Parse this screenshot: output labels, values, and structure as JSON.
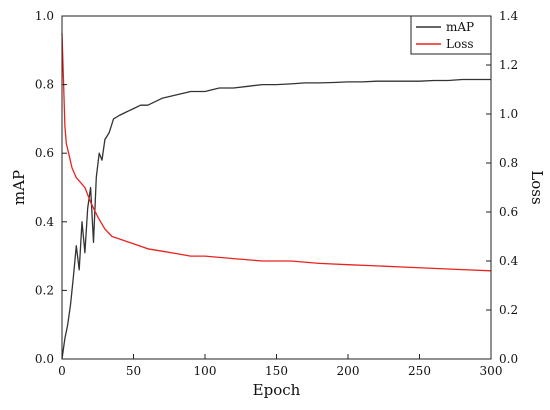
{
  "chart_data": {
    "type": "line",
    "title": "",
    "xlabel": "Epoch",
    "ylabel_left": "mAP",
    "ylabel_right": "Loss",
    "xlim": [
      0,
      300
    ],
    "ylim_left": [
      0.0,
      1.0
    ],
    "ylim_right": [
      0.0,
      1.4
    ],
    "x_ticks": [
      "0",
      "50",
      "100",
      "150",
      "200",
      "250",
      "300"
    ],
    "y_left_ticks": [
      "0.0",
      "0.2",
      "0.4",
      "0.6",
      "0.8",
      "1.0"
    ],
    "y_right_ticks": [
      "0.0",
      "0.2",
      "0.4",
      "0.6",
      "0.8",
      "1.0",
      "1.2",
      "1.4"
    ],
    "grid": false,
    "legend_position": "top-right",
    "series": [
      {
        "name": "mAP",
        "axis": "left",
        "color": "#333333",
        "x": [
          0,
          2,
          4,
          6,
          8,
          10,
          12,
          14,
          16,
          18,
          20,
          22,
          24,
          26,
          28,
          30,
          33,
          36,
          40,
          45,
          50,
          55,
          60,
          70,
          80,
          90,
          100,
          110,
          120,
          130,
          140,
          150,
          160,
          170,
          180,
          190,
          200,
          210,
          220,
          230,
          240,
          250,
          260,
          270,
          280,
          290,
          300
        ],
        "y": [
          0.0,
          0.06,
          0.1,
          0.16,
          0.24,
          0.33,
          0.26,
          0.4,
          0.31,
          0.44,
          0.5,
          0.34,
          0.53,
          0.6,
          0.58,
          0.64,
          0.66,
          0.7,
          0.71,
          0.72,
          0.73,
          0.74,
          0.74,
          0.76,
          0.77,
          0.78,
          0.78,
          0.79,
          0.79,
          0.795,
          0.8,
          0.8,
          0.802,
          0.805,
          0.805,
          0.806,
          0.808,
          0.808,
          0.81,
          0.81,
          0.81,
          0.81,
          0.812,
          0.812,
          0.815,
          0.815,
          0.815
        ]
      },
      {
        "name": "Loss",
        "axis": "right",
        "color": "#e8231f",
        "x": [
          0,
          1,
          2,
          3,
          5,
          7,
          10,
          13,
          16,
          20,
          25,
          30,
          35,
          40,
          50,
          60,
          70,
          80,
          90,
          100,
          120,
          140,
          160,
          180,
          200,
          220,
          240,
          260,
          280,
          300
        ],
        "y": [
          1.33,
          1.15,
          0.95,
          0.88,
          0.83,
          0.78,
          0.74,
          0.72,
          0.7,
          0.64,
          0.58,
          0.53,
          0.5,
          0.49,
          0.47,
          0.45,
          0.44,
          0.43,
          0.42,
          0.42,
          0.41,
          0.4,
          0.4,
          0.39,
          0.385,
          0.38,
          0.375,
          0.37,
          0.365,
          0.36
        ]
      }
    ]
  }
}
